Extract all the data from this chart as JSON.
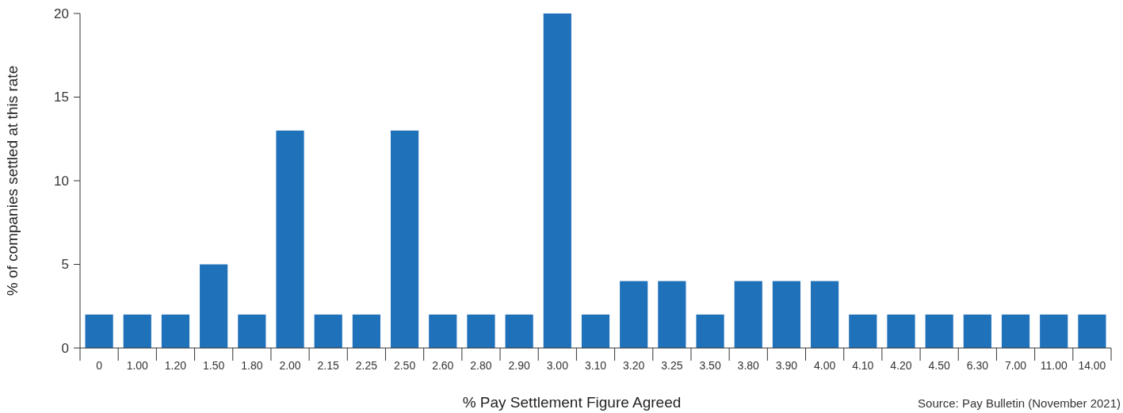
{
  "chart_data": {
    "type": "bar",
    "xlabel": "% Pay Settlement Figure Agreed",
    "ylabel": "% of companies settled at this rate",
    "annotations": [
      "Source: Pay Bulletin (November 2021)"
    ],
    "categories": [
      "0",
      "1.00",
      "1.20",
      "1.50",
      "1.80",
      "2.00",
      "2.15",
      "2.25",
      "2.50",
      "2.60",
      "2.80",
      "2.90",
      "3.00",
      "3.10",
      "3.20",
      "3.25",
      "3.50",
      "3.80",
      "3.90",
      "4.00",
      "4.10",
      "4.20",
      "4.50",
      "6.30",
      "7.00",
      "11.00",
      "14.00"
    ],
    "values": [
      2,
      2,
      2,
      5,
      2,
      13,
      2,
      2,
      13,
      2,
      2,
      2,
      20,
      2,
      4,
      4,
      2,
      4,
      4,
      4,
      2,
      2,
      2,
      2,
      2,
      2,
      2
    ],
    "color": "#1f71ba",
    "ylim": [
      0,
      20
    ],
    "yticks": [
      0,
      5,
      10,
      15,
      20
    ],
    "grid": false
  }
}
